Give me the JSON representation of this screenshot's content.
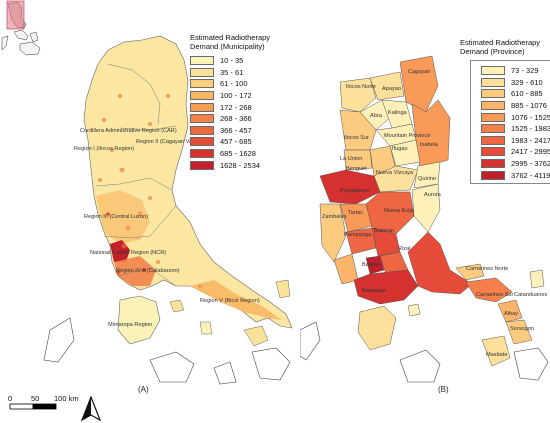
{
  "panel_a": {
    "legend_title": "Estimated Radiotherapy\nDemand (Municipality)",
    "legend": [
      {
        "label": "10 - 35",
        "color": "#fbf2b8"
      },
      {
        "label": "35 - 61",
        "color": "#fbe29a"
      },
      {
        "label": "61 - 100",
        "color": "#fbcf7e"
      },
      {
        "label": "100 - 172",
        "color": "#f8b765"
      },
      {
        "label": "172 - 268",
        "color": "#f59d55"
      },
      {
        "label": "268 - 366",
        "color": "#f1834a"
      },
      {
        "label": "366 - 457",
        "color": "#ec6940"
      },
      {
        "label": "457 - 685",
        "color": "#e44d37"
      },
      {
        "label": "685 - 1628",
        "color": "#d6322f"
      },
      {
        "label": "1628 - 2534",
        "color": "#c4202b"
      }
    ],
    "regions": [
      "Cordillera Administrative Region (CAR)",
      "Region II (Cagayan Valle",
      "Region I (Ilocos Region)",
      "Region III (Central Luzon)",
      "National Capital Region (NCR)",
      "Region IV-A (Calabarzon)",
      "Region V (Bicol Region)",
      "Mimaropa Region"
    ],
    "panel_label": "(A)"
  },
  "panel_b": {
    "legend_title": "Estimated Radiotherapy\nDemand (Province)",
    "legend": [
      {
        "label": "73 - 329",
        "color": "#fdf0b9"
      },
      {
        "label": "329 - 610",
        "color": "#fde09c"
      },
      {
        "label": "610 - 885",
        "color": "#fdcb80"
      },
      {
        "label": "885 - 1076",
        "color": "#fbb469"
      },
      {
        "label": "1076 - 1525",
        "color": "#f99a58"
      },
      {
        "label": "1525 - 1983",
        "color": "#f5804c"
      },
      {
        "label": "1983 - 2417",
        "color": "#ef6642"
      },
      {
        "label": "2417 - 2995",
        "color": "#e54b38"
      },
      {
        "label": "2995 - 3762",
        "color": "#d5312f"
      },
      {
        "label": "3762 - 4119",
        "color": "#bf1f2b"
      }
    ],
    "provinces": [
      "Ilocos Norte",
      "Apayao",
      "Cagayan",
      "Abra",
      "Kalinga",
      "Ilocos Sur",
      "Mountain Province",
      "Isabela",
      "Ifugao",
      "La Union",
      "Benguet",
      "Nueva Vizcaya",
      "Quirino",
      "Aurora",
      "Pangasinan",
      "Zambales",
      "Tarlac",
      "Nueva Ecija",
      "Pampanga",
      "Bulacan",
      "Rizal",
      "Bataan",
      "Batangas",
      "Camarines Norte",
      "Camarines Sur",
      "Catanduanes",
      "Albay",
      "Sorsogon",
      "Masbate"
    ],
    "panel_label": "(B)"
  },
  "scale": {
    "ticks": [
      "0",
      "50",
      "100 km"
    ]
  }
}
